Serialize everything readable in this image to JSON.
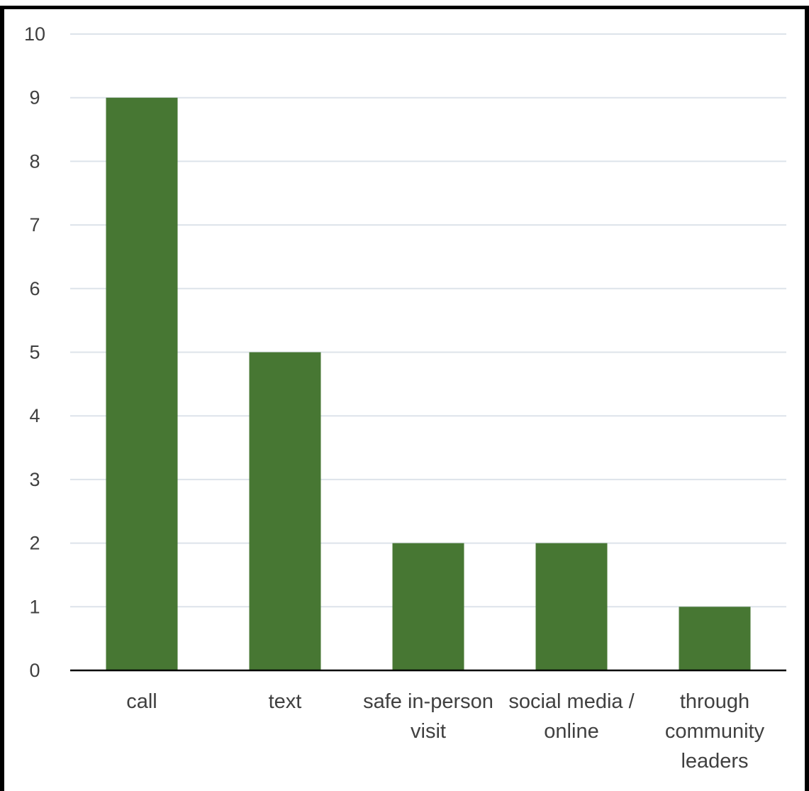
{
  "chart_data": {
    "type": "bar",
    "title": "",
    "xlabel": "",
    "ylabel": "",
    "categories": [
      [
        "call"
      ],
      [
        "text"
      ],
      [
        "safe in-person",
        "visit"
      ],
      [
        "social media /",
        "online"
      ],
      [
        "through",
        "community",
        "leaders"
      ]
    ],
    "values": [
      9,
      5,
      2,
      2,
      1
    ],
    "ylim": [
      0,
      10
    ],
    "yticks": [
      0,
      1,
      2,
      3,
      4,
      5,
      6,
      7,
      8,
      9,
      10
    ],
    "grid": true,
    "legend": "none",
    "bar_color": "#477733",
    "grid_color": "#dde3ea",
    "axis_color": "#000000"
  }
}
